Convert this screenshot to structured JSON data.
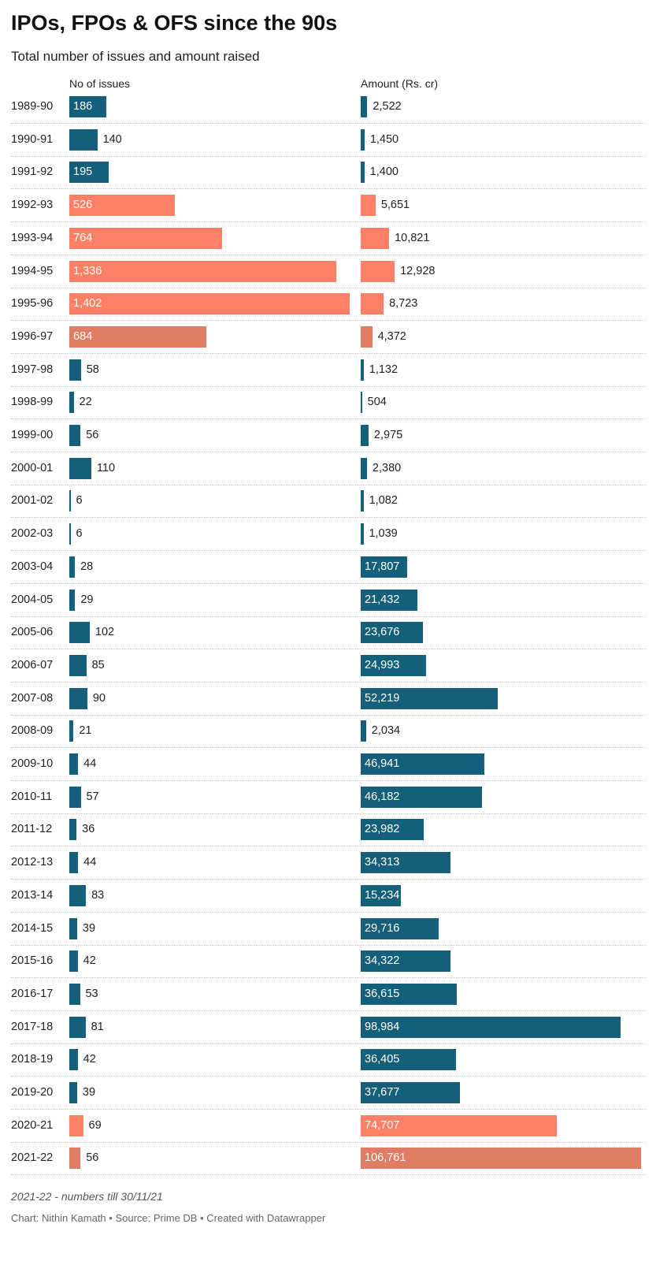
{
  "colors": {
    "normal": "#14607a",
    "highlight": "#ff8066",
    "highlight_dark": "#e07c64"
  },
  "chart_data": {
    "type": "bar",
    "title": "IPOs, FPOs & OFS since the 90s",
    "subtitle": "Total number of issues and amount raised",
    "series": [
      {
        "name": "No of issues",
        "values": [
          186,
          140,
          195,
          526,
          764,
          1336,
          1402,
          684,
          58,
          22,
          56,
          110,
          6,
          6,
          28,
          29,
          102,
          85,
          90,
          21,
          44,
          57,
          36,
          44,
          83,
          39,
          42,
          53,
          81,
          42,
          39,
          69,
          56
        ]
      },
      {
        "name": "Amount (Rs. cr)",
        "values": [
          2522,
          1450,
          1400,
          5651,
          10821,
          12928,
          8723,
          4372,
          1132,
          504,
          2975,
          2380,
          1082,
          1039,
          17807,
          21432,
          23676,
          24993,
          52219,
          2034,
          46941,
          46182,
          23982,
          34313,
          15234,
          29716,
          34322,
          36615,
          98984,
          36405,
          37677,
          74707,
          106761
        ]
      }
    ],
    "categories": [
      "1989-90",
      "1990-91",
      "1991-92",
      "1992-93",
      "1993-94",
      "1994-95",
      "1995-96",
      "1996-97",
      "1997-98",
      "1998-99",
      "1999-00",
      "2000-01",
      "2001-02",
      "2002-03",
      "2003-04",
      "2004-05",
      "2005-06",
      "2006-07",
      "2007-08",
      "2008-09",
      "2009-10",
      "2010-11",
      "2011-12",
      "2012-13",
      "2013-14",
      "2014-15",
      "2015-16",
      "2016-17",
      "2017-18",
      "2018-19",
      "2019-20",
      "2020-21",
      "2021-22"
    ],
    "labels_issues": [
      "186",
      "140",
      "195",
      "526",
      "764",
      "1,336",
      "1,402",
      "684",
      "58",
      "22",
      "56",
      "110",
      "6",
      "6",
      "28",
      "29",
      "102",
      "85",
      "90",
      "21",
      "44",
      "57",
      "36",
      "44",
      "83",
      "39",
      "42",
      "53",
      "81",
      "42",
      "39",
      "69",
      "56"
    ],
    "labels_amount": [
      "2,522",
      "1,450",
      "1,400",
      "5,651",
      "10,821",
      "12,928",
      "8,723",
      "4,372",
      "1,132",
      "504",
      "2,975",
      "2,380",
      "1,082",
      "1,039",
      "17,807",
      "21,432",
      "23,676",
      "24,993",
      "52,219",
      "2,034",
      "46,941",
      "46,182",
      "23,982",
      "34,313",
      "15,234",
      "29,716",
      "34,322",
      "36,615",
      "98,984",
      "36,405",
      "37,677",
      "74,707",
      "106,761"
    ],
    "highlight": [
      "none",
      "none",
      "none",
      "highlight",
      "highlight",
      "highlight",
      "highlight",
      "dark",
      "none",
      "none",
      "none",
      "none",
      "none",
      "none",
      "none",
      "none",
      "none",
      "none",
      "none",
      "none",
      "none",
      "none",
      "none",
      "none",
      "none",
      "none",
      "none",
      "none",
      "none",
      "none",
      "none",
      "highlight",
      "dark"
    ],
    "xlim_issues": [
      0,
      1402
    ],
    "xlim_amount": [
      0,
      106761
    ],
    "grid": false,
    "legend": "none"
  },
  "footer": {
    "note": "2021-22 - numbers till 30/11/21",
    "credit": "Chart: Nithin Kamath • Source: Prime DB • Created with Datawrapper"
  }
}
